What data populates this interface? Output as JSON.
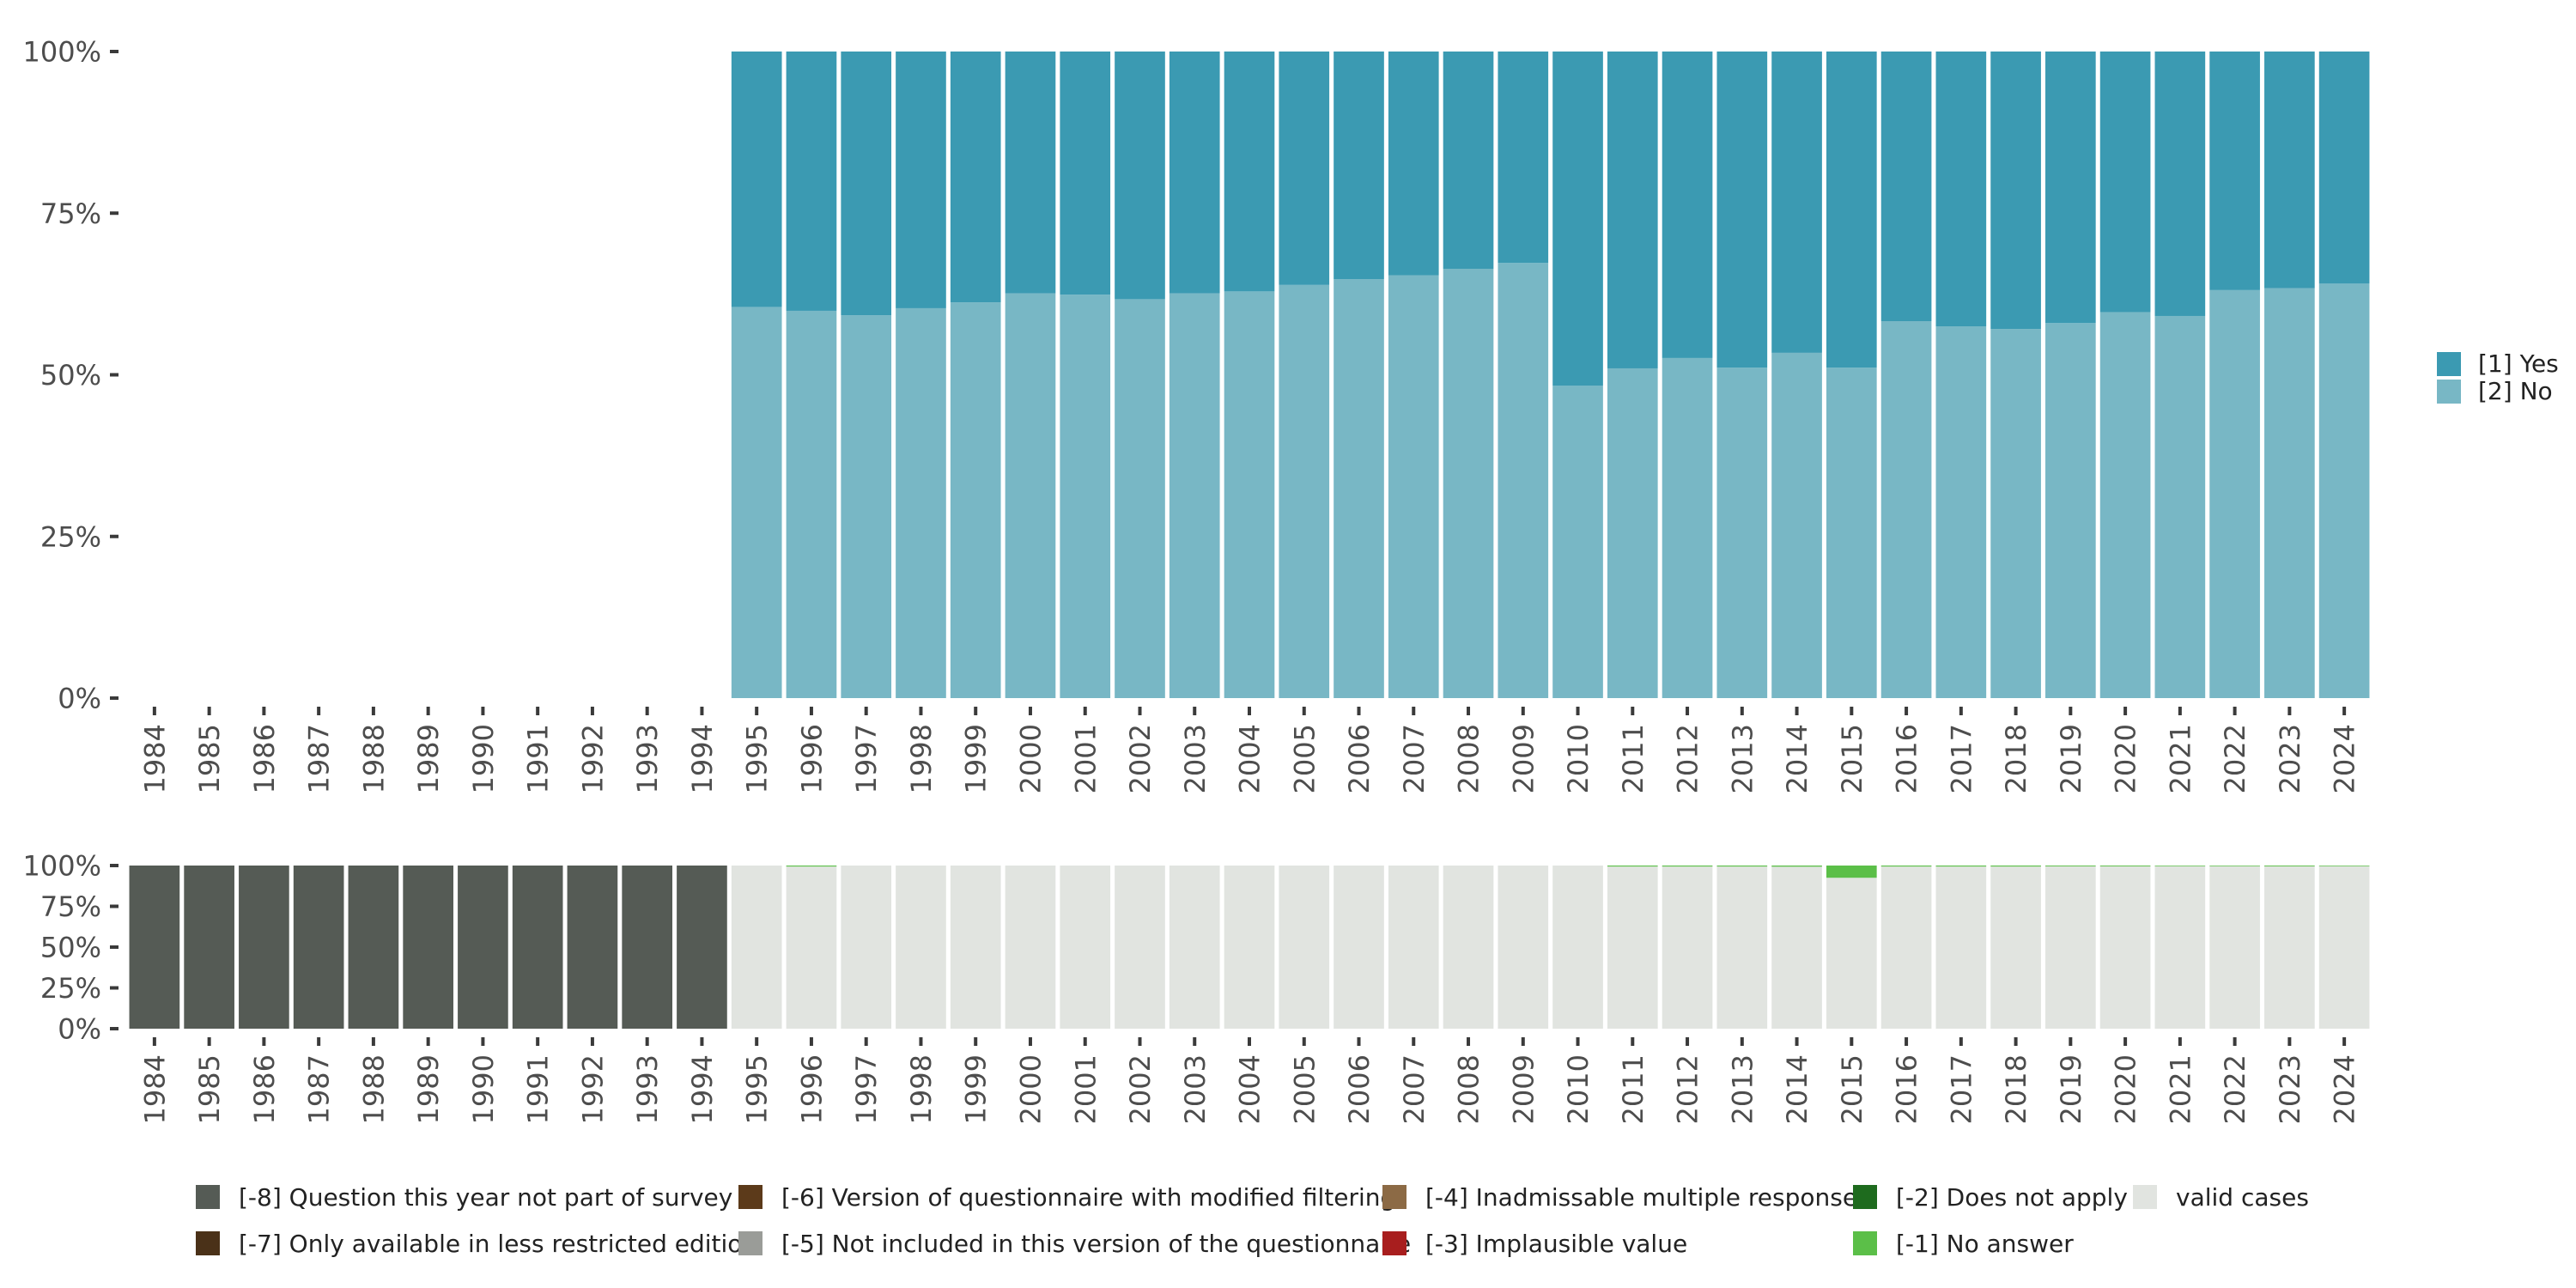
{
  "colors": {
    "yes": "#3b9ab2",
    "no": "#78b7c5",
    "valid": "#e1e4e0",
    "q_not_part": "#555b55",
    "no_answer": "#5bbf48",
    "tick": "#3a3a3a",
    "text": "#4d4d4d"
  },
  "chart_data": [
    {
      "type": "bar",
      "stacked": true,
      "title": "",
      "xlabel": "",
      "ylabel": "",
      "ylim": [
        0,
        100
      ],
      "y_ticks": [
        "0%",
        "25%",
        "50%",
        "75%",
        "100%"
      ],
      "categories": [
        "1984",
        "1985",
        "1986",
        "1987",
        "1988",
        "1989",
        "1990",
        "1991",
        "1992",
        "1993",
        "1994",
        "1995",
        "1996",
        "1997",
        "1998",
        "1999",
        "2000",
        "2001",
        "2002",
        "2003",
        "2004",
        "2005",
        "2006",
        "2007",
        "2008",
        "2009",
        "2010",
        "2011",
        "2012",
        "2013",
        "2014",
        "2015",
        "2016",
        "2017",
        "2018",
        "2019",
        "2020",
        "2021",
        "2022",
        "2023",
        "2024"
      ],
      "series": [
        {
          "name": "[2] No",
          "color_key": "no",
          "values": [
            null,
            null,
            null,
            null,
            null,
            null,
            null,
            null,
            null,
            null,
            null,
            60.5,
            59.9,
            59.2,
            60.3,
            61.2,
            62.6,
            62.4,
            61.7,
            62.6,
            62.9,
            63.9,
            64.8,
            65.4,
            66.4,
            67.3,
            48.3,
            51.0,
            52.6,
            51.1,
            53.4,
            51.1,
            58.3,
            57.5,
            57.1,
            58.0,
            59.7,
            59.1,
            63.1,
            63.4,
            64.1
          ]
        },
        {
          "name": "[1] Yes",
          "color_key": "yes",
          "values": [
            null,
            null,
            null,
            null,
            null,
            null,
            null,
            null,
            null,
            null,
            null,
            39.5,
            40.1,
            40.8,
            39.7,
            38.8,
            37.4,
            37.6,
            38.3,
            37.4,
            37.1,
            36.1,
            35.2,
            34.6,
            33.6,
            32.7,
            51.7,
            49.0,
            47.4,
            48.9,
            46.6,
            48.9,
            41.7,
            42.5,
            42.9,
            42.0,
            40.3,
            40.9,
            36.9,
            36.6,
            35.9
          ]
        }
      ],
      "legend": {
        "position": "right",
        "entries": [
          {
            "label": "[1] Yes",
            "color_key": "yes"
          },
          {
            "label": "[2] No",
            "color_key": "no"
          }
        ]
      }
    },
    {
      "type": "bar",
      "stacked": true,
      "title": "",
      "xlabel": "",
      "ylabel": "",
      "ylim": [
        0,
        100
      ],
      "y_ticks": [
        "0%",
        "25%",
        "50%",
        "75%",
        "100%"
      ],
      "categories": [
        "1984",
        "1985",
        "1986",
        "1987",
        "1988",
        "1989",
        "1990",
        "1991",
        "1992",
        "1993",
        "1994",
        "1995",
        "1996",
        "1997",
        "1998",
        "1999",
        "2000",
        "2001",
        "2002",
        "2003",
        "2004",
        "2005",
        "2006",
        "2007",
        "2008",
        "2009",
        "2010",
        "2011",
        "2012",
        "2013",
        "2014",
        "2015",
        "2016",
        "2017",
        "2018",
        "2019",
        "2020",
        "2021",
        "2022",
        "2023",
        "2024"
      ],
      "series": [
        {
          "name": "[-8] Question this year not part of survey",
          "color_key": "q_not_part",
          "values": [
            100,
            100,
            100,
            100,
            100,
            100,
            100,
            100,
            100,
            100,
            100,
            0,
            0,
            0,
            0,
            0,
            0,
            0,
            0,
            0,
            0,
            0,
            0,
            0,
            0,
            0,
            0,
            0,
            0,
            0,
            0,
            0,
            0,
            0,
            0,
            0,
            0,
            0,
            0,
            0,
            0
          ]
        },
        {
          "name": "valid cases",
          "color_key": "valid",
          "values": [
            0,
            0,
            0,
            0,
            0,
            0,
            0,
            0,
            0,
            0,
            0,
            100,
            99.4,
            100,
            100,
            100,
            100,
            100,
            100,
            100,
            100,
            100,
            100,
            100,
            100,
            100,
            100,
            99.4,
            99.4,
            99.4,
            99.3,
            92.5,
            99.4,
            99.4,
            99.4,
            99.5,
            99.5,
            99.6,
            99.6,
            99.5,
            99.6
          ]
        },
        {
          "name": "[-1] No answer",
          "color_key": "no_answer",
          "values": [
            0,
            0,
            0,
            0,
            0,
            0,
            0,
            0,
            0,
            0,
            0,
            0,
            0.6,
            0,
            0,
            0,
            0,
            0,
            0,
            0,
            0,
            0,
            0,
            0,
            0,
            0,
            0,
            0.6,
            0.6,
            0.6,
            0.7,
            7.5,
            0.6,
            0.6,
            0.6,
            0.5,
            0.5,
            0.4,
            0.4,
            0.5,
            0.4
          ]
        }
      ],
      "legend": {
        "position": "bottom",
        "entries": [
          {
            "label": "[-8] Question this year not part of survey",
            "color": "#555b55"
          },
          {
            "label": "[-7] Only available in less restricted edition",
            "color": "#4a3118"
          },
          {
            "label": "[-6] Version of questionnaire with modified filtering",
            "color": "#5c3a1a"
          },
          {
            "label": "[-5] Not included in this version of the questionnaire",
            "color": "#9a9c98"
          },
          {
            "label": "[-4] Inadmissable multiple response",
            "color": "#8c6a45"
          },
          {
            "label": "[-3] Implausible value",
            "color": "#a81e1e"
          },
          {
            "label": "[-2] Does not apply",
            "color": "#1e6b1e"
          },
          {
            "label": "[-1] No answer",
            "color": "#5bbf48"
          },
          {
            "label": "valid cases",
            "color": "#e1e4e0"
          }
        ]
      }
    }
  ]
}
